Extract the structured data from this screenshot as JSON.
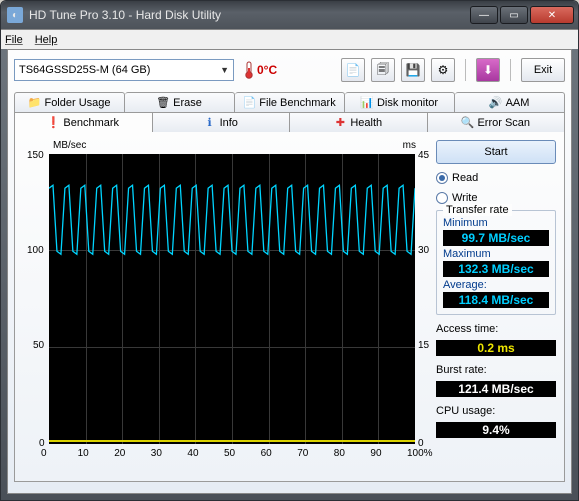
{
  "window": {
    "title": "HD Tune Pro 3.10 - Hard Disk Utility"
  },
  "menu": {
    "file": "File",
    "help": "Help"
  },
  "toolbar": {
    "drive": "TS64GSSD25S-M (64 GB)",
    "temperature": "0°C",
    "exit": "Exit"
  },
  "tabs_top": {
    "folder_usage": "Folder Usage",
    "erase": "Erase",
    "file_benchmark": "File Benchmark",
    "disk_monitor": "Disk monitor",
    "aam": "AAM"
  },
  "tabs_bottom": {
    "benchmark": "Benchmark",
    "info": "Info",
    "health": "Health",
    "error_scan": "Error Scan"
  },
  "chart": {
    "y_left_unit": "MB/sec",
    "y_right_unit": "ms",
    "y_left_ticks": [
      "150",
      "100",
      "50",
      "0"
    ],
    "y_right_ticks": [
      "45",
      "30",
      "15",
      "0"
    ],
    "x_ticks": [
      "0",
      "10",
      "20",
      "30",
      "40",
      "50",
      "60",
      "70",
      "80",
      "90",
      "100%"
    ],
    "line_color": "#00d5ff",
    "access_line_color": "#dbd200",
    "background": "#000000",
    "grid_color": "#383838",
    "y_range": [
      0,
      150
    ],
    "x_range": [
      0,
      100
    ],
    "series_min": 99.7,
    "series_max": 132.3,
    "series_cycles": 23,
    "access_ms": 0.2
  },
  "side": {
    "start": "Start",
    "read": "Read",
    "write": "Write",
    "read_selected": true,
    "transfer_title": "Transfer rate",
    "minimum_label": "Minimum",
    "minimum_val": "99.7 MB/sec",
    "maximum_label": "Maximum",
    "maximum_val": "132.3 MB/sec",
    "average_label": "Average:",
    "average_val": "118.4 MB/sec",
    "access_label": "Access time:",
    "access_val": "0.2 ms",
    "burst_label": "Burst rate:",
    "burst_val": "121.4 MB/sec",
    "cpu_label": "CPU usage:",
    "cpu_val": "9.4%"
  }
}
